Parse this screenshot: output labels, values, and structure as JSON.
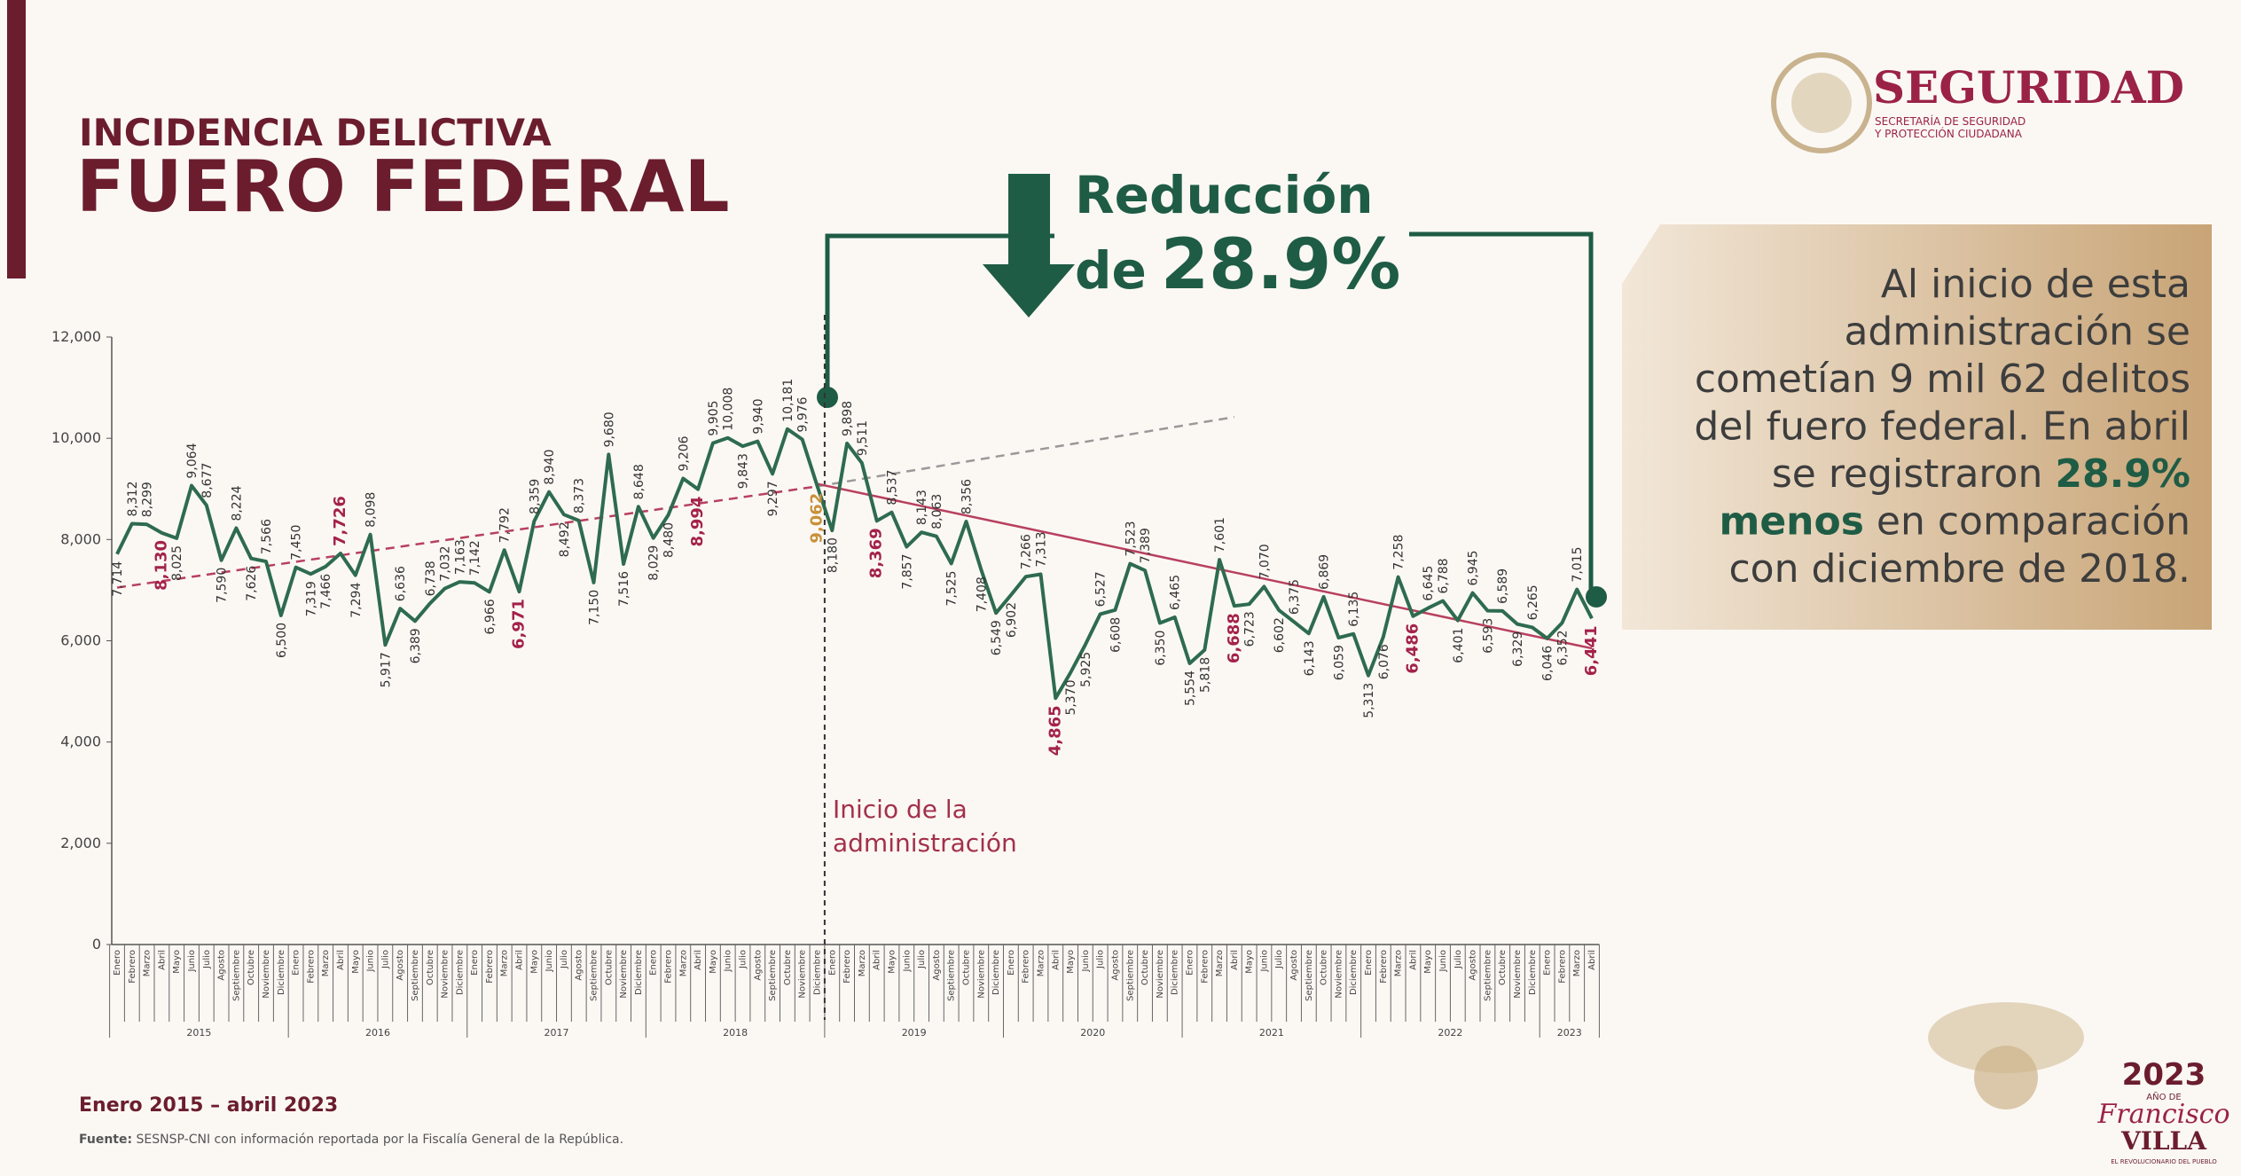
{
  "header": {
    "kicker": "INCIDENCIA DELICTIVA",
    "title": "FUERO FEDERAL"
  },
  "logo": {
    "name": "SEGURIDAD",
    "line1": "SECRETARÍA DE SEGURIDAD",
    "line2": "Y PROTECCIÓN CIUDADANA"
  },
  "reduction": {
    "line1": "Reducción",
    "prefix": "de",
    "amount": "28.9%"
  },
  "callout": {
    "lines": [
      [
        "Al inicio de esta"
      ],
      [
        "administración se"
      ],
      [
        "cometían 9 mil 62 delitos"
      ],
      [
        "del fuero federal. En abril"
      ],
      [
        "se registraron ",
        {
          "text": "28.9%",
          "bold": true
        }
      ],
      [
        {
          "text": "menos",
          "bold": true
        },
        " en comparación"
      ],
      [
        "con diciembre de 2018."
      ]
    ]
  },
  "footer": {
    "period": "Enero 2015 – abril 2023",
    "source_label": "Fuente:",
    "source": " SESNSP-CNI con información reportada por la Fiscalía General de la República."
  },
  "badge": {
    "year": "2023",
    "sub": "AÑO DE",
    "name1": "Francisco",
    "name2": "VILLA",
    "motto": "EL REVOLUCIONARIO DEL PUEBLO"
  },
  "chart_data": {
    "type": "line",
    "color": "#2e6b4f",
    "annotation": [
      "Inicio de la",
      "administración"
    ],
    "categories": [
      "Enero",
      "Febrero",
      "Marzo",
      "Abril",
      "Mayo",
      "Junio",
      "Julio",
      "Agosto",
      "Septiembre",
      "Octubre",
      "Noviembre",
      "Diciembre",
      "Enero",
      "Febrero",
      "Marzo",
      "Abril",
      "Mayo",
      "Junio",
      "Julio",
      "Agosto",
      "Septiembre",
      "Octubre",
      "Noviembre",
      "Diciembre",
      "Enero",
      "Febrero",
      "Marzo",
      "Abril",
      "Mayo",
      "Junio",
      "Julio",
      "Agosto",
      "Septiembre",
      "Octubre",
      "Noviembre",
      "Diciembre",
      "Enero",
      "Febrero",
      "Marzo",
      "Abril",
      "Mayo",
      "Junio",
      "Julio",
      "Agosto",
      "Septiembre",
      "Octubre",
      "Noviembre",
      "Diciembre",
      "Enero",
      "Febrero",
      "Marzo",
      "Abril",
      "Mayo",
      "Junio",
      "Julio",
      "Agosto",
      "Septiembre",
      "Octubre",
      "Noviembre",
      "Diciembre",
      "Enero",
      "Febrero",
      "Marzo",
      "Abril",
      "Mayo",
      "Junio",
      "Julio",
      "Agosto",
      "Septiembre",
      "Octubre",
      "Noviembre",
      "Diciembre",
      "Enero",
      "Febrero",
      "Marzo",
      "Abril",
      "Mayo",
      "Junio",
      "Julio",
      "Agosto",
      "Septiembre",
      "Octubre",
      "Noviembre",
      "Diciembre",
      "Enero",
      "Febrero",
      "Marzo",
      "Abril",
      "Mayo",
      "Junio",
      "Julio",
      "Agosto",
      "Septiembre",
      "Octubre",
      "Noviembre",
      "Diciembre",
      "Enero",
      "Febrero",
      "Marzo",
      "Abril"
    ],
    "year_groups": [
      "2015",
      "2016",
      "2017",
      "2018",
      "2019",
      "2020",
      "2021",
      "2022",
      "2023"
    ],
    "values": [
      7714,
      8312,
      8299,
      8130,
      8025,
      9064,
      8677,
      7590,
      8224,
      7626,
      7566,
      6500,
      7450,
      7319,
      7466,
      7726,
      7294,
      8098,
      5917,
      6636,
      6389,
      6738,
      7032,
      7163,
      7142,
      6966,
      7792,
      6971,
      8359,
      8940,
      8492,
      8373,
      7150,
      9680,
      7516,
      8648,
      8029,
      8480,
      9206,
      8994,
      9905,
      10008,
      9843,
      9940,
      9297,
      10181,
      9976,
      9062,
      8180,
      9898,
      9511,
      8369,
      8537,
      7857,
      8143,
      8063,
      7525,
      8356,
      7408,
      6549,
      6902,
      7266,
      7313,
      4865,
      5370,
      5925,
      6527,
      6608,
      7523,
      7389,
      6350,
      6465,
      5554,
      5818,
      7601,
      6688,
      6723,
      7070,
      6602,
      6375,
      6143,
      6869,
      6059,
      6135,
      5313,
      6076,
      7258,
      6486,
      6645,
      6788,
      6401,
      6945,
      6593,
      6589,
      6329,
      6265,
      6046,
      6352,
      7015,
      6441
    ],
    "value_labels": [
      "7,714",
      "8,312",
      "8,299",
      "8,130",
      "8,025",
      "9,064",
      "8,677",
      "7,590",
      "8,224",
      "7,626",
      "7,566",
      "6,500",
      "7,450",
      "7,319",
      "7,466",
      "7,726",
      "7,294",
      "8,098",
      "5,917",
      "6,636",
      "6,389",
      "6,738",
      "7,032",
      "7,163",
      "7,142",
      "6,966",
      "7,792",
      "6,971",
      "8,359",
      "8,940",
      "8,492",
      "8,373",
      "7,150",
      "9,680",
      "7,516",
      "8,648",
      "8,029",
      "8,480",
      "9,206",
      "8,994",
      "9,905",
      "10,008",
      "9,843",
      "9,940",
      "9,297",
      "10,181",
      "9,976",
      "9,062",
      "8,180",
      "9,898",
      "9,511",
      "8,369",
      "8,537",
      "7,857",
      "8,143",
      "8,063",
      "7,525",
      "8,356",
      "7,408",
      "6,549",
      "6,902",
      "7,266",
      "7,313",
      "4,865",
      "5,370",
      "5,925",
      "6,527",
      "6,608",
      "7,523",
      "7,389",
      "6,350",
      "6,465",
      "5,554",
      "5,818",
      "7,601",
      "6,688",
      "6,723",
      "7,070",
      "6,602",
      "6,375",
      "6,143",
      "6,869",
      "6,059",
      "6,135",
      "5,313",
      "6,076",
      "7,258",
      "6,486",
      "6,645",
      "6,788",
      "6,401",
      "6,945",
      "6,593",
      "6,589",
      "6,329",
      "6,265",
      "6,046",
      "6,352",
      "7,015",
      "6,441"
    ],
    "highlight_points": [
      3,
      15,
      27,
      39,
      51,
      63,
      75,
      87,
      99
    ],
    "highlight_color": "#a3224a",
    "start_point": 47,
    "start_color": "#c8913a",
    "trends": [
      {
        "from": [
          0,
          7050
        ],
        "to": [
          47,
          9050
        ],
        "color": "#b8405e",
        "dashed": true
      },
      {
        "from": [
          47,
          9050
        ],
        "to": [
          75,
          10420
        ],
        "color": "#999999",
        "dashed": true
      },
      {
        "from": [
          47,
          9100
        ],
        "to": [
          99,
          5850
        ],
        "color": "#b8405e",
        "dashed": false
      }
    ],
    "ylim": [
      0,
      12000
    ],
    "yticks": [
      0,
      {
        "value": 2000,
        "label": "2,000"
      },
      {
        "value": 4000,
        "label": "4,000"
      },
      {
        "value": 6000,
        "label": "6,000"
      },
      {
        "value": 8000,
        "label": "8,000"
      },
      {
        "value": 10000,
        "label": "10,000"
      },
      {
        "value": 12000,
        "label": "12,000"
      }
    ]
  }
}
